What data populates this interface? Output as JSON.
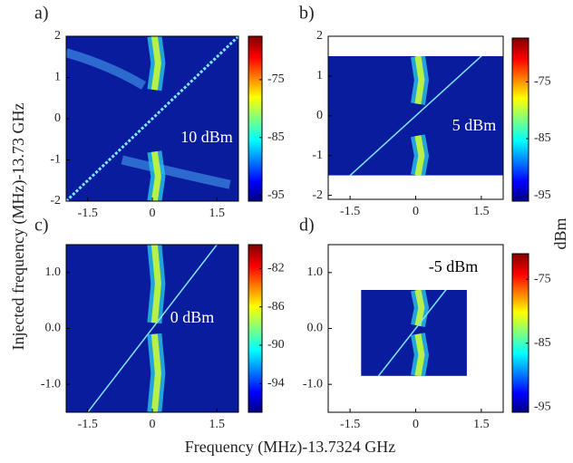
{
  "figure": {
    "xlabel": "Frequency (MHz)-13.7324 GHz",
    "ylabel": "Injected frequency (MHz)-13.73 GHz",
    "colorbar_label": "dBm"
  },
  "chart_data": [
    {
      "type": "heatmap",
      "panel": "a)",
      "annotation": "10 dBm",
      "xlim": [
        -2,
        2
      ],
      "ylim": [
        -2,
        2
      ],
      "xticks": [
        -1.5,
        0,
        1.5
      ],
      "yticks": [
        -2,
        -1,
        0,
        1,
        2
      ],
      "colorbar": {
        "lim": [
          -96,
          -67.5
        ],
        "ticks": [
          -95,
          -85,
          -75
        ]
      }
    },
    {
      "type": "heatmap",
      "panel": "b)",
      "annotation": "5 dBm",
      "xlim": [
        -2,
        2
      ],
      "ylim": [
        -2.1,
        2
      ],
      "xticks": [
        -1.5,
        0,
        1.5
      ],
      "yticks": [
        -2,
        -1,
        0,
        1,
        2
      ],
      "colorbar": {
        "lim": [
          -96,
          -67.3
        ],
        "ticks": [
          -95,
          -85,
          -75
        ]
      }
    },
    {
      "type": "heatmap",
      "panel": "c)",
      "annotation": "0 dBm",
      "xlim": [
        -2,
        2
      ],
      "ylim": [
        -1.5,
        1.5
      ],
      "xticks": [
        -1.5,
        0,
        1.5
      ],
      "yticks": [
        {
          "value": -1,
          "label": "-1.0"
        },
        {
          "value": 0,
          "label": "0.0"
        },
        {
          "value": 1,
          "label": "1.0"
        }
      ],
      "colorbar": {
        "lim": [
          -97,
          -79.5
        ],
        "ticks": [
          -94,
          -90,
          -86,
          -82
        ]
      }
    },
    {
      "type": "heatmap",
      "panel": "d)",
      "annotation": "-5 dBm",
      "xlim": [
        -2,
        2
      ],
      "ylim": [
        -1.5,
        1.5
      ],
      "xticks": [
        -1.5,
        0,
        1.5
      ],
      "yticks": [
        {
          "value": -1,
          "label": "-1.0"
        },
        {
          "value": 0,
          "label": "0.0"
        },
        {
          "value": 1,
          "label": "1.0"
        }
      ],
      "colorbar": {
        "lim": [
          -95.8,
          -71
        ],
        "ticks": [
          -95,
          -85,
          -75
        ]
      }
    }
  ]
}
